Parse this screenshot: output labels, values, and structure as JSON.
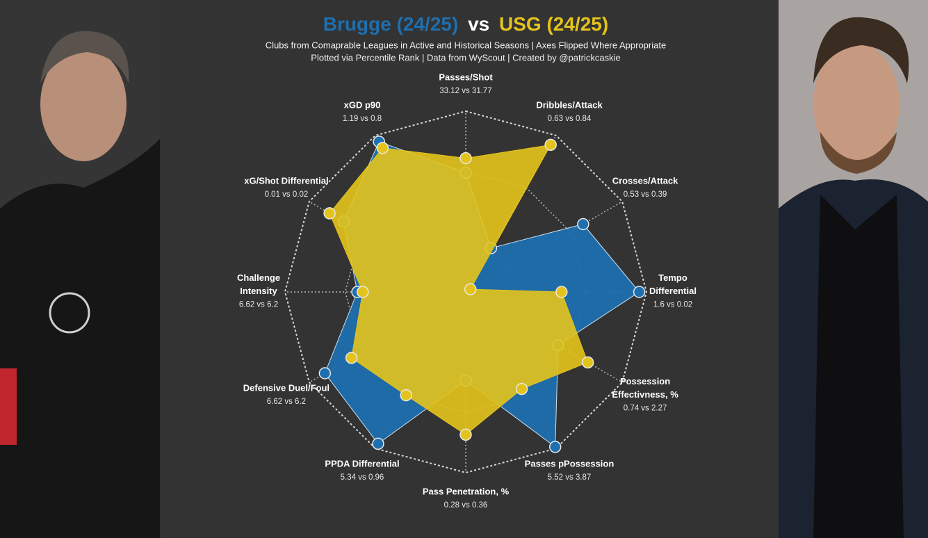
{
  "chart_data": {
    "type": "radar",
    "title_connector": "vs",
    "subtitle": [
      "Clubs from Comaprable Leagues in Active and Historical Seasons | Axes Flipped Where Appropriate",
      "Plotted via Percentile Rank | Data from WyScout | Created by @patrickcaskie"
    ],
    "axes": [
      {
        "label": [
          "Passes/Shot"
        ],
        "value_text": "33.12 vs 31.77"
      },
      {
        "label": [
          "Dribbles/Attack"
        ],
        "value_text": "0.63 vs 0.84"
      },
      {
        "label": [
          "Crosses/Attack"
        ],
        "value_text": "0.53 vs 0.39"
      },
      {
        "label": [
          "Tempo",
          "Differential"
        ],
        "value_text": "1.6 vs 0.02"
      },
      {
        "label": [
          "Possession",
          "Effectivness, %"
        ],
        "value_text": "0.74 vs 2.27"
      },
      {
        "label": [
          "Passes pPossession"
        ],
        "value_text": "5.52 vs 3.87"
      },
      {
        "label": [
          "Pass Penetration, %"
        ],
        "value_text": "0.28 vs 0.36"
      },
      {
        "label": [
          "PPDA Differential"
        ],
        "value_text": "5.34 vs 0.96"
      },
      {
        "label": [
          "Defensive Duel/Foul"
        ],
        "value_text": "6.62 vs 6.2"
      },
      {
        "label": [
          "Challenge",
          "Intensity"
        ],
        "value_text": "6.62 vs 6.2"
      },
      {
        "label": [
          "xG/Shot Differential"
        ],
        "value_text": "0.01 vs 0.02"
      },
      {
        "label": [
          "xGD p90"
        ],
        "value_text": "1.19 vs 0.8"
      }
    ],
    "rlim": [
      0,
      100
    ],
    "series": [
      {
        "name": "Brugge (24/25)",
        "color": "#1f6fae",
        "values": [
          66,
          28,
          75,
          96,
          59,
          99,
          49,
          97,
          90,
          60,
          78,
          96
        ]
      },
      {
        "name": "USG (24/25)",
        "color": "#e4c41c",
        "values": [
          74,
          94,
          3,
          53,
          78,
          62,
          79,
          66,
          73,
          57,
          87,
          92
        ]
      }
    ]
  }
}
